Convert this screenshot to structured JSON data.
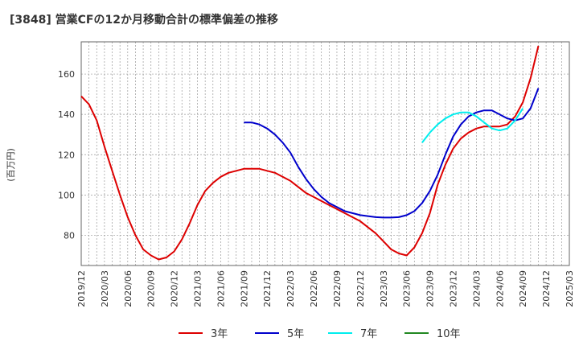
{
  "title": "[3848]  営業CFの12か月移動合計の標準偏差の推移",
  "chart_data": {
    "type": "line",
    "ylabel": "(百万円)",
    "ylim": [
      65,
      176
    ],
    "yticks": [
      80,
      100,
      120,
      140,
      160
    ],
    "x_start": "2019-12",
    "x_end": "2025-03",
    "xticks": [
      "2019/12",
      "2020/03",
      "2020/06",
      "2020/09",
      "2020/12",
      "2021/03",
      "2021/06",
      "2021/09",
      "2021/12",
      "2022/03",
      "2022/06",
      "2022/09",
      "2022/12",
      "2023/03",
      "2023/06",
      "2023/09",
      "2023/12",
      "2024/03",
      "2024/06",
      "2024/09",
      "2024/12",
      "2025/03"
    ],
    "grid": true,
    "legend_position": "bottom",
    "series": [
      {
        "name": "3年",
        "color": "#dd0000",
        "start": "2019-12",
        "values": [
          149,
          145,
          137,
          124,
          112,
          100,
          89,
          80,
          73,
          70,
          68,
          69,
          72,
          78,
          86,
          95,
          102,
          106,
          109,
          111,
          112,
          113,
          113,
          113,
          112,
          111,
          109,
          107,
          104,
          101,
          99,
          97,
          95,
          93,
          91,
          89,
          87,
          84,
          81,
          77,
          73,
          71,
          70,
          74,
          81,
          91,
          105,
          115,
          123,
          128,
          131,
          133,
          134,
          134,
          134,
          135,
          139,
          146,
          158,
          174
        ]
      },
      {
        "name": "5年",
        "color": "#0000cc",
        "start": "2021-09",
        "values": [
          136,
          136,
          135,
          133,
          130,
          126,
          121,
          114,
          108,
          103,
          99,
          96,
          94,
          92,
          91,
          90,
          89.5,
          89,
          88.8,
          88.8,
          89,
          90,
          92,
          96,
          102,
          110,
          120,
          129,
          135,
          139,
          141,
          142,
          142,
          140,
          138,
          137,
          138,
          143,
          153
        ]
      },
      {
        "name": "7年",
        "color": "#00eeee",
        "start": "2023-08",
        "values": [
          126,
          131,
          135,
          138,
          140,
          141,
          141,
          139,
          136,
          133,
          132,
          133,
          137,
          143
        ]
      },
      {
        "name": "10年",
        "color": "#228822",
        "start": "2019-12",
        "values": []
      }
    ]
  }
}
